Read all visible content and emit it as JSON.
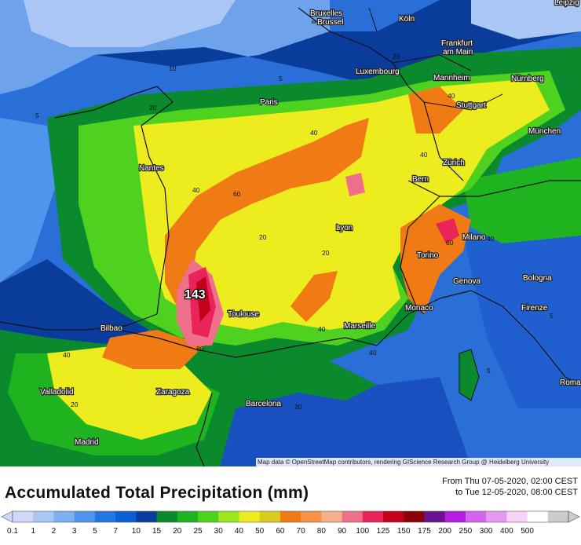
{
  "title": "Accumulated Total Precipitation (mm)",
  "period": {
    "from": "From Thu 07-05-2020, 02:00 CEST",
    "to": "to Tue 12-05-2020, 08:00 CEST"
  },
  "attribution": "Map data © OpenStreetMap contributors, rendering GIScience Research Group @ Heidelberg University",
  "max_label": "143",
  "cities": {
    "bruxelles": "Bruxelles",
    "brussel": "- Brussel",
    "koln": "Köln",
    "leipzig": "Leipzig",
    "frankfurt": "Frankfurt",
    "am_main": "am Main",
    "luxembourg": "Luxembourg",
    "mannheim": "Mannheim",
    "nurnberg": "Nürnberg",
    "paris": "Paris",
    "stuttgart": "Stuttgart",
    "munchen": "München",
    "nantes": "Nantes",
    "zurich": "Zürich",
    "bern": "Bern",
    "lyon": "Lyon",
    "milano": "Milano",
    "torino": "Torino",
    "genova": "Genova",
    "bologna": "Bologna",
    "firenze": "Firenze",
    "monaco": "Monaco",
    "toulouse": "Toulouse",
    "marseille": "Marseille",
    "bilbao": "Bilbao",
    "valladolid": "Valladolid",
    "zaragoza": "Zaragoza",
    "barcelona": "Barcelona",
    "madrid": "Madrid",
    "roma": "Roma"
  },
  "contour_labels": [
    "5",
    "10",
    "20",
    "40",
    "60",
    "80"
  ],
  "legend": {
    "ticks": [
      "0.1",
      "1",
      "2",
      "3",
      "5",
      "7",
      "10",
      "15",
      "20",
      "25",
      "30",
      "40",
      "50",
      "60",
      "70",
      "80",
      "90",
      "100",
      "125",
      "150",
      "175",
      "200",
      "250",
      "300",
      "400",
      "500"
    ],
    "colors": [
      "#cfd9f7",
      "#a9c6f5",
      "#7fb0f0",
      "#4f95ec",
      "#2277e0",
      "#0a5fd2",
      "#0a3c9c",
      "#0a8a2c",
      "#1fb31f",
      "#4fd11f",
      "#9ae61f",
      "#ecec1f",
      "#d9cc1f",
      "#f07a14",
      "#f59446",
      "#f7b08c",
      "#f0708c",
      "#e8245a",
      "#c4001a",
      "#8a000a",
      "#6a1290",
      "#b41ee0",
      "#d264f0",
      "#e49af2",
      "#f7d2f7",
      "#ffffff",
      "#cccccc"
    ]
  }
}
